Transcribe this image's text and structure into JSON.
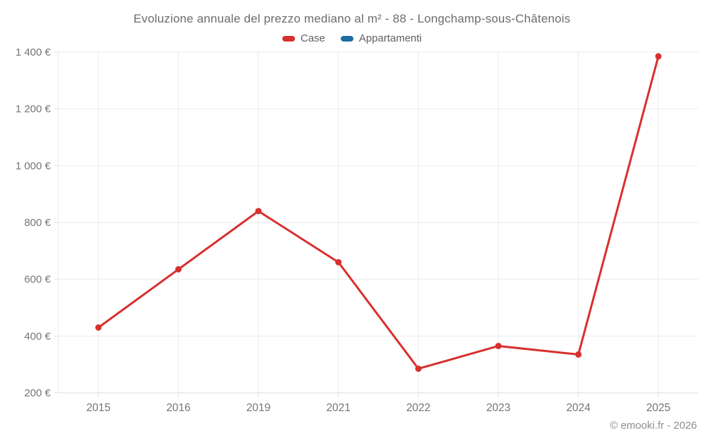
{
  "title": "Evoluzione annuale del prezzo mediano al m² - 88 - Longchamp-sous-Châtenois",
  "legend": [
    {
      "label": "Case",
      "color": "#d7302f"
    },
    {
      "label": "Appartamenti",
      "color": "#1c6ea4"
    }
  ],
  "footer": "© emooki.fr - 2026",
  "colors": {
    "grid": "#ebebeb",
    "axis": "#dedede",
    "tick_label": "#757577",
    "title": "#6a6c70",
    "case_line": "#d7302f",
    "appartamenti": "#1c6ea4"
  },
  "chart_data": {
    "type": "line",
    "title": "Evoluzione annuale del prezzo mediano al m² - 88 - Longchamp-sous-Châtenois",
    "categories": [
      "2015",
      "2016",
      "2019",
      "2021",
      "2022",
      "2023",
      "2024",
      "2025"
    ],
    "series": [
      {
        "name": "Case",
        "color": "#d7302f",
        "values": [
          430,
          635,
          840,
          660,
          285,
          365,
          335,
          1385
        ]
      },
      {
        "name": "Appartamenti",
        "color": "#1c6ea4",
        "values": []
      }
    ],
    "xlabel": "",
    "ylabel": "",
    "ylim": [
      200,
      1400
    ],
    "ytick_step": 200,
    "ytick_suffix": " €",
    "grid": true,
    "legend_position": "top"
  }
}
